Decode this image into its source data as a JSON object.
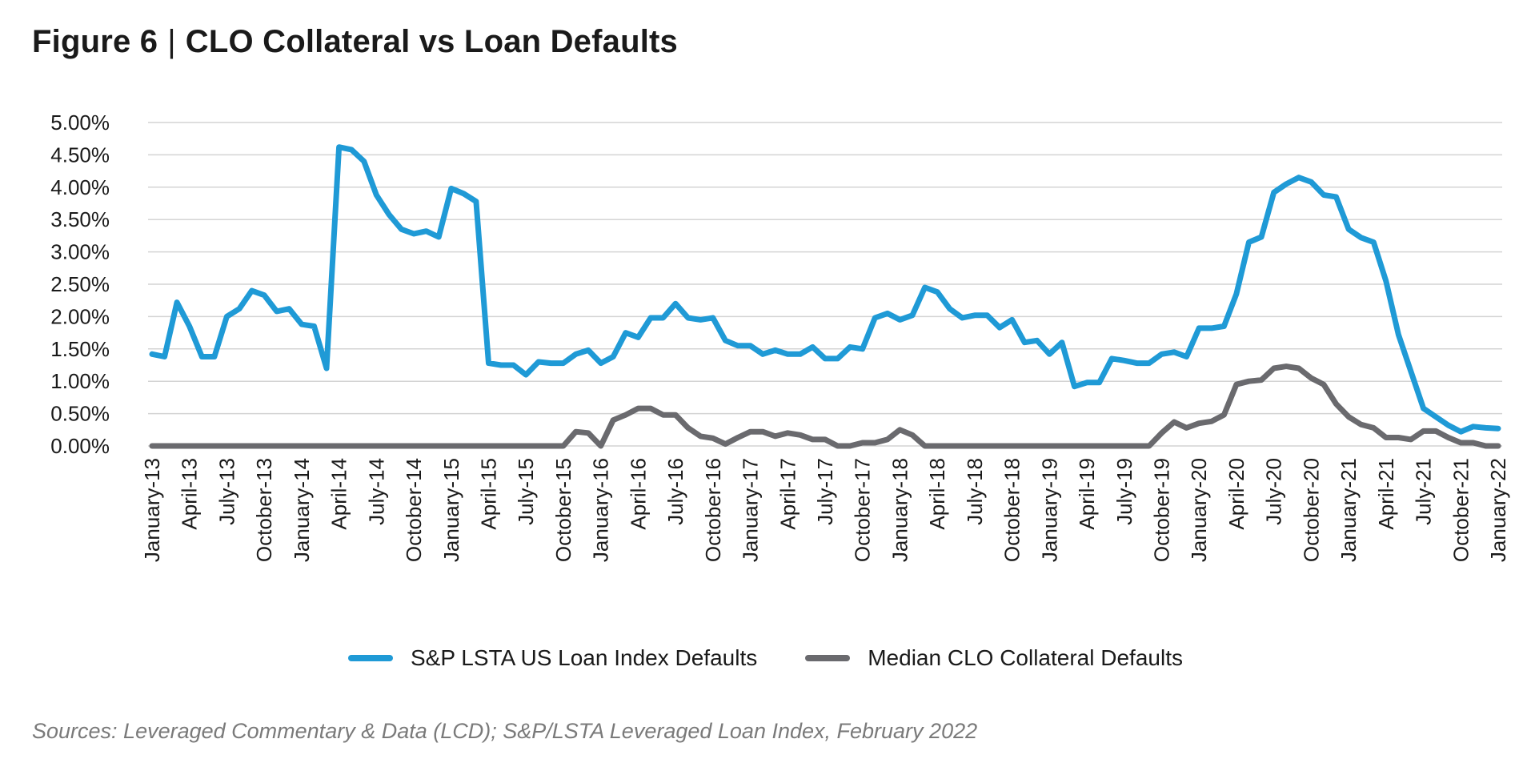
{
  "header": {
    "figure_label": "Figure 6",
    "separator": "|",
    "title_text": "CLO Collateral vs Loan Defaults"
  },
  "source_note": "Sources: Leveraged Commentary & Data (LCD); S&P/LSTA Leveraged Loan Index, February 2022",
  "colors": {
    "loan_index": "#1f9ad6",
    "clo": "#6a6a6e",
    "grid": "#d4d4d4"
  },
  "chart_data": {
    "type": "line",
    "title": "CLO Collateral vs Loan Defaults",
    "xlabel": "",
    "ylabel": "",
    "ylim": [
      0,
      5
    ],
    "y_ticks": [
      "0.00%",
      "0.50%",
      "1.00%",
      "1.50%",
      "2.00%",
      "2.50%",
      "3.00%",
      "3.50%",
      "4.00%",
      "4.50%",
      "5.00%"
    ],
    "x_tick_labels": [
      "January-13",
      "April-13",
      "July-13",
      "October-13",
      "January-14",
      "April-14",
      "July-14",
      "October-14",
      "January-15",
      "April-15",
      "July-15",
      "October-15",
      "January-16",
      "April-16",
      "July-16",
      "October-16",
      "January-17",
      "April-17",
      "July-17",
      "October-17",
      "January-18",
      "April-18",
      "July-18",
      "October-18",
      "January-19",
      "April-19",
      "July-19",
      "October-19",
      "January-20",
      "April-20",
      "July-20",
      "October-20",
      "January-21",
      "April-21",
      "July-21",
      "October-21",
      "January-22"
    ],
    "grid": true,
    "legend_position": "bottom",
    "x_start": "January-13",
    "x_end": "January-22",
    "series": [
      {
        "name": "S&P LSTA US Loan Index Defaults",
        "values": [
          1.42,
          1.38,
          2.22,
          1.85,
          1.38,
          1.38,
          2.0,
          2.12,
          2.4,
          2.33,
          2.08,
          2.12,
          1.88,
          1.85,
          1.2,
          4.62,
          4.58,
          4.4,
          3.88,
          3.58,
          3.35,
          3.28,
          3.32,
          3.23,
          3.98,
          3.9,
          3.78,
          1.28,
          1.25,
          1.25,
          1.1,
          1.3,
          1.28,
          1.28,
          1.42,
          1.48,
          1.28,
          1.38,
          1.75,
          1.68,
          1.98,
          1.98,
          2.2,
          1.98,
          1.95,
          1.98,
          1.63,
          1.55,
          1.55,
          1.42,
          1.48,
          1.42,
          1.42,
          1.53,
          1.35,
          1.35,
          1.53,
          1.5,
          1.98,
          2.05,
          1.95,
          2.02,
          2.45,
          2.38,
          2.12,
          1.98,
          2.02,
          2.02,
          1.83,
          1.95,
          1.6,
          1.63,
          1.42,
          1.6,
          0.92,
          0.98,
          0.98,
          1.35,
          1.32,
          1.28,
          1.28,
          1.42,
          1.45,
          1.38,
          1.82,
          1.82,
          1.85,
          2.35,
          3.15,
          3.23,
          3.92,
          4.05,
          4.15,
          4.08,
          3.88,
          3.85,
          3.35,
          3.22,
          3.15,
          2.55,
          1.72,
          1.15,
          0.58,
          0.45,
          0.32,
          0.22,
          0.3,
          0.28,
          0.27
        ]
      },
      {
        "name": "Median CLO Collateral Defaults",
        "values": [
          0,
          0,
          0,
          0,
          0,
          0,
          0,
          0,
          0,
          0,
          0,
          0,
          0,
          0,
          0,
          0,
          0,
          0,
          0,
          0,
          0,
          0,
          0,
          0,
          0,
          0,
          0,
          0,
          0,
          0,
          0,
          0,
          0,
          0,
          0.22,
          0.2,
          0,
          0.4,
          0.48,
          0.58,
          0.58,
          0.48,
          0.48,
          0.28,
          0.15,
          0.12,
          0.03,
          0.13,
          0.22,
          0.22,
          0.15,
          0.2,
          0.17,
          0.1,
          0.1,
          0,
          0,
          0.05,
          0.05,
          0.1,
          0.25,
          0.17,
          0,
          0,
          0,
          0,
          0,
          0,
          0,
          0,
          0,
          0,
          0,
          0,
          0,
          0,
          0,
          0,
          0,
          0,
          0,
          0.2,
          0.37,
          0.28,
          0.35,
          0.38,
          0.48,
          0.95,
          1.0,
          1.02,
          1.2,
          1.23,
          1.2,
          1.05,
          0.95,
          0.65,
          0.45,
          0.33,
          0.28,
          0.13,
          0.13,
          0.1,
          0.23,
          0.23,
          0.13,
          0.05,
          0.05,
          0,
          0
        ]
      }
    ]
  }
}
